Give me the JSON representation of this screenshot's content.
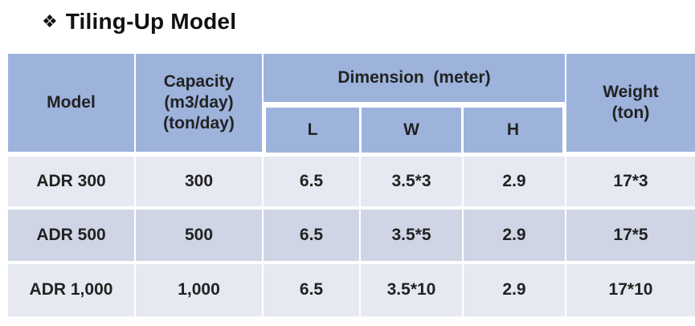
{
  "title": {
    "bullet": "❖",
    "text": "Tiling-Up Model"
  },
  "table": {
    "headers": {
      "model": "Model",
      "capacity_line1": "Capacity",
      "capacity_line2": "(m3/day)",
      "capacity_line3": "(ton/day)",
      "dimension": "Dimension  (meter)",
      "L": "L",
      "W": "W",
      "H": "H",
      "weight_line1": "Weight",
      "weight_line2": "(ton)"
    },
    "rows": [
      {
        "model": "ADR 300",
        "capacity": "300",
        "L": "6.5",
        "W": "3.5*3",
        "H": "2.9",
        "weight": "17*3"
      },
      {
        "model": "ADR 500",
        "capacity": "500",
        "L": "6.5",
        "W": "3.5*5",
        "H": "2.9",
        "weight": "17*5"
      },
      {
        "model": "ADR 1,000",
        "capacity": "1,000",
        "L": "6.5",
        "W": "3.5*10",
        "H": "2.9",
        "weight": "17*10"
      }
    ]
  },
  "colors": {
    "header_bg": "#9db3dc",
    "row_light_bg": "#e6e9f1",
    "row_dark_bg": "#cfd5e4"
  }
}
